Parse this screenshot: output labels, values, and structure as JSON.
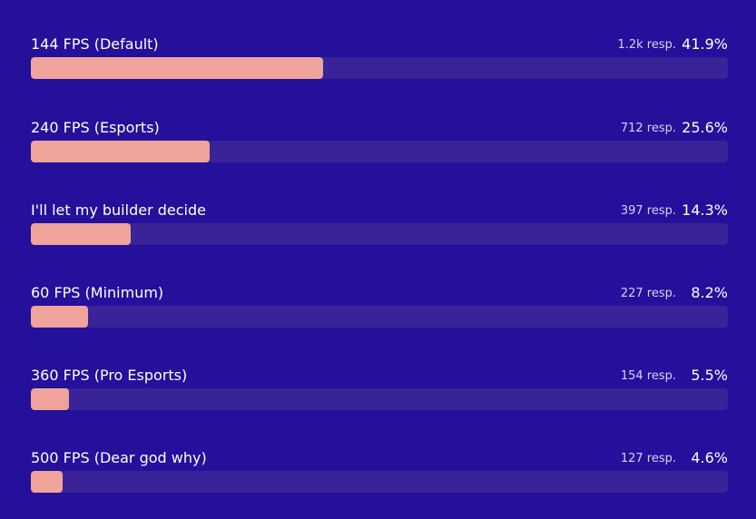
{
  "colors": {
    "background": "#24109a",
    "track": "#3a2399",
    "fill": "#efa39a",
    "text": "#ffffff",
    "muted_text": "#d7d1f2"
  },
  "options": [
    {
      "label": "144 FPS (Default)",
      "responses": "1.2k resp.",
      "percent": "41.9%",
      "fraction": 0.419
    },
    {
      "label": "240 FPS (Esports)",
      "responses": "712 resp.",
      "percent": "25.6%",
      "fraction": 0.256
    },
    {
      "label": "I'll let my builder decide",
      "responses": "397 resp.",
      "percent": "14.3%",
      "fraction": 0.143
    },
    {
      "label": "60 FPS (Minimum)",
      "responses": "227 resp.",
      "percent": "8.2%",
      "fraction": 0.082
    },
    {
      "label": "360 FPS (Pro Esports)",
      "responses": "154 resp.",
      "percent": "5.5%",
      "fraction": 0.055
    },
    {
      "label": "500 FPS (Dear god why)",
      "responses": "127 resp.",
      "percent": "4.6%",
      "fraction": 0.046
    }
  ]
}
